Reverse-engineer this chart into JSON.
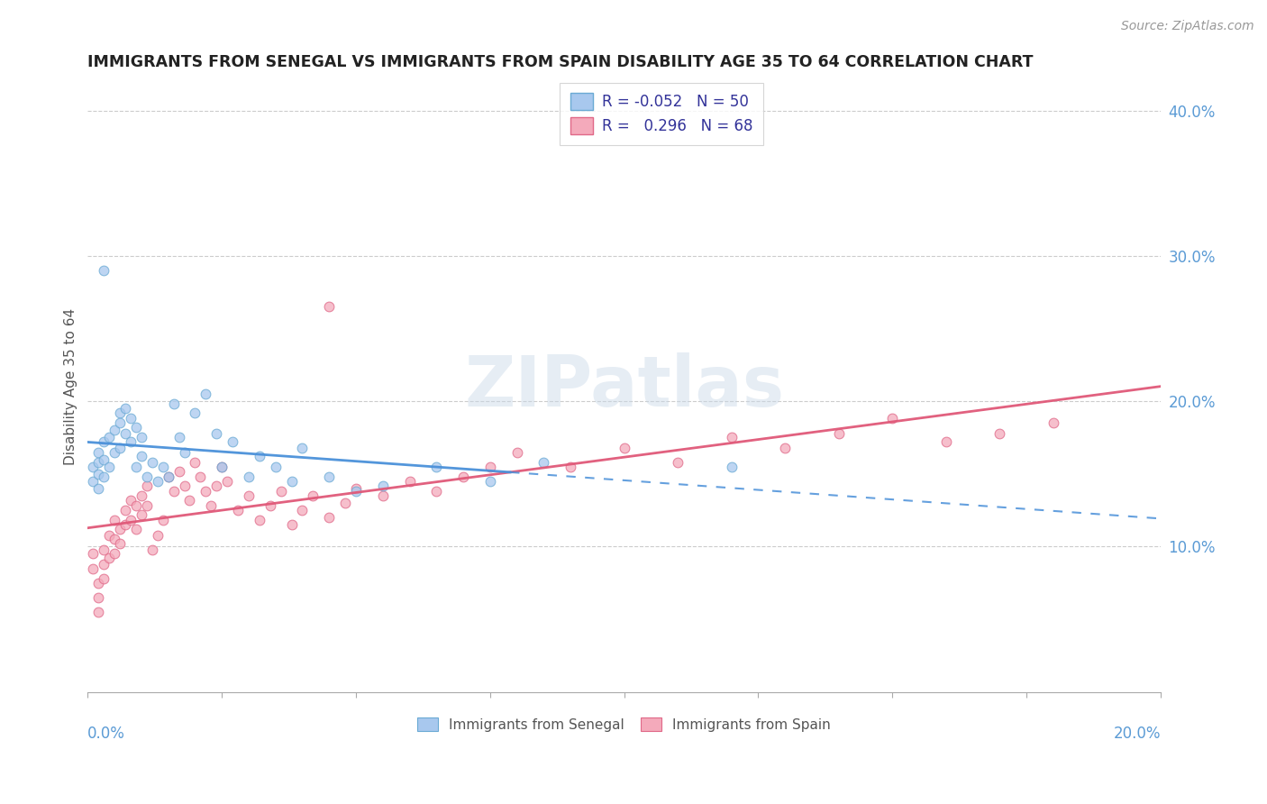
{
  "title": "IMMIGRANTS FROM SENEGAL VS IMMIGRANTS FROM SPAIN DISABILITY AGE 35 TO 64 CORRELATION CHART",
  "source": "Source: ZipAtlas.com",
  "ylabel": "Disability Age 35 to 64",
  "xlim": [
    0.0,
    0.2
  ],
  "ylim": [
    0.0,
    0.42
  ],
  "y_ticks_right": [
    0.1,
    0.2,
    0.3,
    0.4
  ],
  "y_tick_labels_right": [
    "10.0%",
    "20.0%",
    "30.0%",
    "40.0%"
  ],
  "color_senegal_fill": "#a8c8ee",
  "color_senegal_edge": "#6aaad4",
  "color_spain_fill": "#f4aabb",
  "color_spain_edge": "#e06888",
  "color_senegal_line": "#4a90d9",
  "color_spain_line": "#e05878",
  "watermark": "ZIPatlas",
  "senegal_x": [
    0.001,
    0.001,
    0.002,
    0.002,
    0.002,
    0.002,
    0.003,
    0.003,
    0.003,
    0.004,
    0.004,
    0.005,
    0.005,
    0.006,
    0.006,
    0.006,
    0.007,
    0.007,
    0.008,
    0.008,
    0.009,
    0.009,
    0.01,
    0.01,
    0.011,
    0.012,
    0.013,
    0.014,
    0.015,
    0.016,
    0.017,
    0.018,
    0.02,
    0.022,
    0.024,
    0.025,
    0.027,
    0.03,
    0.032,
    0.035,
    0.038,
    0.04,
    0.045,
    0.05,
    0.055,
    0.065,
    0.075,
    0.085,
    0.12,
    0.003
  ],
  "senegal_y": [
    0.155,
    0.145,
    0.165,
    0.158,
    0.15,
    0.14,
    0.172,
    0.16,
    0.148,
    0.175,
    0.155,
    0.18,
    0.165,
    0.192,
    0.185,
    0.168,
    0.195,
    0.178,
    0.188,
    0.172,
    0.182,
    0.155,
    0.175,
    0.162,
    0.148,
    0.158,
    0.145,
    0.155,
    0.148,
    0.198,
    0.175,
    0.165,
    0.192,
    0.205,
    0.178,
    0.155,
    0.172,
    0.148,
    0.162,
    0.155,
    0.145,
    0.168,
    0.148,
    0.138,
    0.142,
    0.155,
    0.145,
    0.158,
    0.155,
    0.29
  ],
  "spain_x": [
    0.001,
    0.001,
    0.002,
    0.002,
    0.002,
    0.003,
    0.003,
    0.003,
    0.004,
    0.004,
    0.005,
    0.005,
    0.005,
    0.006,
    0.006,
    0.007,
    0.007,
    0.008,
    0.008,
    0.009,
    0.009,
    0.01,
    0.01,
    0.011,
    0.011,
    0.012,
    0.013,
    0.014,
    0.015,
    0.016,
    0.017,
    0.018,
    0.019,
    0.02,
    0.021,
    0.022,
    0.023,
    0.024,
    0.025,
    0.026,
    0.028,
    0.03,
    0.032,
    0.034,
    0.036,
    0.038,
    0.04,
    0.042,
    0.045,
    0.048,
    0.05,
    0.055,
    0.06,
    0.065,
    0.07,
    0.075,
    0.08,
    0.09,
    0.1,
    0.11,
    0.12,
    0.13,
    0.14,
    0.15,
    0.16,
    0.17,
    0.18,
    0.045
  ],
  "spain_y": [
    0.095,
    0.085,
    0.075,
    0.065,
    0.055,
    0.098,
    0.088,
    0.078,
    0.108,
    0.092,
    0.118,
    0.105,
    0.095,
    0.112,
    0.102,
    0.125,
    0.115,
    0.132,
    0.118,
    0.128,
    0.112,
    0.135,
    0.122,
    0.142,
    0.128,
    0.098,
    0.108,
    0.118,
    0.148,
    0.138,
    0.152,
    0.142,
    0.132,
    0.158,
    0.148,
    0.138,
    0.128,
    0.142,
    0.155,
    0.145,
    0.125,
    0.135,
    0.118,
    0.128,
    0.138,
    0.115,
    0.125,
    0.135,
    0.12,
    0.13,
    0.14,
    0.135,
    0.145,
    0.138,
    0.148,
    0.155,
    0.165,
    0.155,
    0.168,
    0.158,
    0.175,
    0.168,
    0.178,
    0.188,
    0.172,
    0.178,
    0.185,
    0.265
  ]
}
